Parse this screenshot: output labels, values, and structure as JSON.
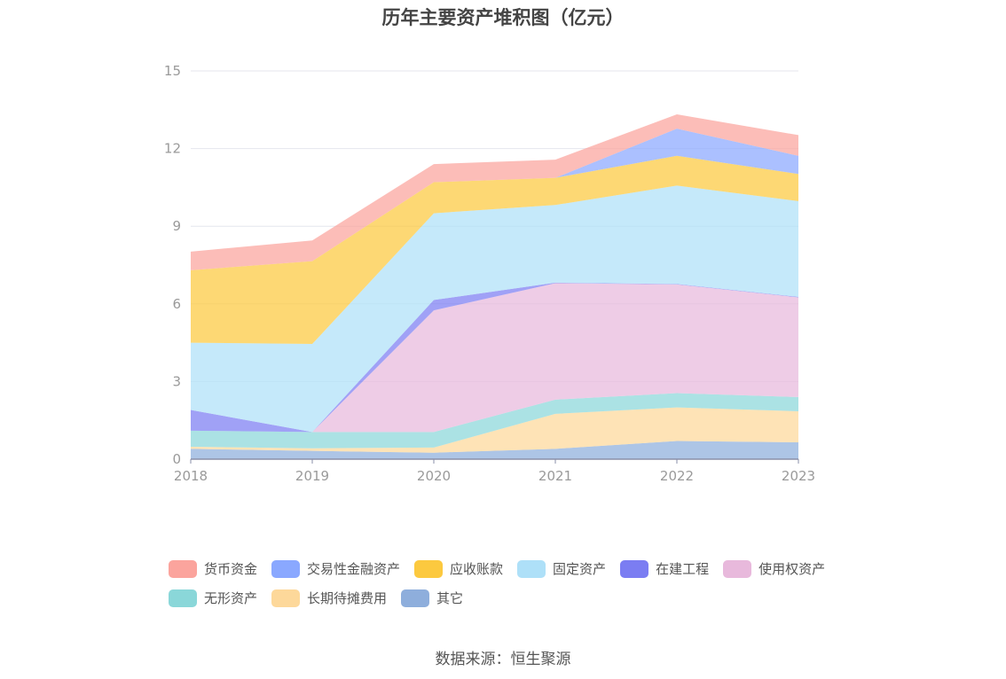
{
  "chart_data": {
    "type": "area",
    "stacked": true,
    "title": "历年主要资产堆积图（亿元）",
    "categories": [
      "2018",
      "2019",
      "2020",
      "2021",
      "2022",
      "2023"
    ],
    "ylim": [
      0,
      15
    ],
    "yticks": [
      0,
      3,
      6,
      9,
      12,
      15
    ],
    "grid": true,
    "legend_position": "bottom",
    "series": [
      {
        "name": "其它",
        "color": "#8eaedc",
        "values": [
          0.4,
          0.32,
          0.25,
          0.4,
          0.7,
          0.65
        ]
      },
      {
        "name": "长期待摊费用",
        "color": "#fdd89a",
        "values": [
          0.08,
          0.1,
          0.2,
          1.35,
          1.3,
          1.2
        ]
      },
      {
        "name": "无形资产",
        "color": "#8ad7d9",
        "values": [
          0.62,
          0.63,
          0.6,
          0.55,
          0.55,
          0.55
        ]
      },
      {
        "name": "使用权资产",
        "color": "#e8b9dc",
        "values": [
          0.0,
          0.0,
          4.7,
          4.5,
          4.2,
          3.85
        ]
      },
      {
        "name": "在建工程",
        "color": "#7b7df2",
        "values": [
          0.8,
          0.0,
          0.4,
          0.02,
          0.02,
          0.02
        ]
      },
      {
        "name": "固定资产",
        "color": "#aee0f8",
        "values": [
          2.6,
          3.4,
          3.35,
          3.0,
          3.8,
          3.7
        ]
      },
      {
        "name": "应收账款",
        "color": "#fcc93f",
        "values": [
          2.8,
          3.2,
          1.2,
          1.05,
          1.15,
          1.05
        ]
      },
      {
        "name": "交易性金融资产",
        "color": "#8aa8ff",
        "values": [
          0.0,
          0.0,
          0.0,
          0.0,
          1.05,
          0.7
        ]
      },
      {
        "name": "货币资金",
        "color": "#fba49d",
        "values": [
          0.72,
          0.8,
          0.7,
          0.7,
          0.55,
          0.8
        ]
      }
    ]
  },
  "legend": [
    {
      "label": "货币资金",
      "color": "#fba49d"
    },
    {
      "label": "交易性金融资产",
      "color": "#8aa8ff"
    },
    {
      "label": "应收账款",
      "color": "#fcc93f"
    },
    {
      "label": "固定资产",
      "color": "#aee0f8"
    },
    {
      "label": "在建工程",
      "color": "#7b7df2"
    },
    {
      "label": "使用权资产",
      "color": "#e8b9dc"
    },
    {
      "label": "无形资产",
      "color": "#8ad7d9"
    },
    {
      "label": "长期待摊费用",
      "color": "#fdd89a"
    },
    {
      "label": "其它",
      "color": "#8eaedc"
    }
  ],
  "source": "数据来源：恒生聚源"
}
